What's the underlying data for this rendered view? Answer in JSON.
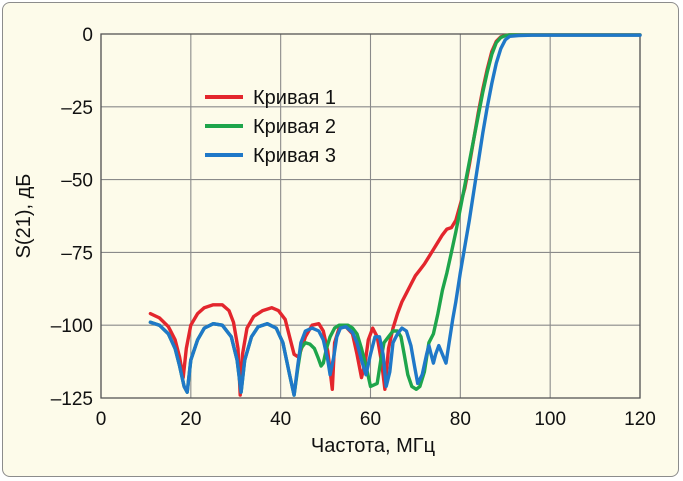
{
  "chart_data": {
    "type": "line",
    "title": "",
    "xlabel": "Частота, МГц",
    "ylabel": "S(21), дБ",
    "xlim": [
      0,
      120
    ],
    "ylim": [
      -125,
      0
    ],
    "xticks": [
      0,
      20,
      40,
      60,
      80,
      100,
      120
    ],
    "yticks": [
      0,
      -25,
      -50,
      -75,
      -100,
      -125
    ],
    "xtick_labels": [
      "0",
      "20",
      "40",
      "60",
      "80",
      "100",
      "120"
    ],
    "ytick_labels": [
      "0",
      "–25",
      "–50",
      "–75",
      "–100",
      "–125"
    ],
    "grid": true,
    "legend_position": "upper-left",
    "background_color": "#fdfbea",
    "series": [
      {
        "name": "Кривая 1",
        "color": "#e3262d",
        "x": [
          11,
          13,
          15,
          16.5,
          17.5,
          18.3,
          19,
          20,
          21.5,
          23,
          25,
          27,
          28.5,
          29.5,
          30.5,
          31,
          31.5,
          32.5,
          34,
          36,
          38,
          39.5,
          41,
          42,
          43,
          44,
          45.5,
          47,
          48.5,
          49.5,
          50.5,
          51.5,
          52,
          53,
          54.5,
          56,
          57,
          58,
          58.8,
          59.5,
          60.5,
          61.5,
          62.5,
          63.2,
          64,
          65,
          66,
          67,
          68,
          69,
          70,
          71,
          72,
          73,
          74,
          75,
          76,
          77,
          78,
          79,
          80,
          81,
          82,
          83,
          84,
          85,
          86,
          87,
          88,
          89,
          90,
          91,
          93,
          96,
          100,
          105,
          110,
          115,
          120
        ],
        "y": [
          -96,
          -97.5,
          -100.5,
          -105,
          -111,
          -118,
          -108,
          -100,
          -96,
          -94,
          -93,
          -93,
          -95,
          -99,
          -108,
          -124,
          -110,
          -101,
          -97,
          -95,
          -94,
          -95,
          -98,
          -104,
          -110,
          -111,
          -104,
          -100,
          -99.5,
          -102,
          -109,
          -122,
          -106,
          -101,
          -100.5,
          -103,
          -110,
          -118,
          -113,
          -105,
          -101,
          -104,
          -113,
          -122,
          -108,
          -101,
          -96,
          -92,
          -89,
          -86,
          -83,
          -81,
          -79,
          -76.5,
          -74,
          -71.5,
          -69,
          -67,
          -66.5,
          -64,
          -58.5,
          -53,
          -45,
          -36,
          -27,
          -19,
          -12,
          -6,
          -2.5,
          -1,
          -0.5,
          -0.3,
          -0.3,
          -0.3,
          -0.3,
          -0.3,
          -0.3,
          -0.3,
          -0.3
        ]
      },
      {
        "name": "Кривая 2",
        "color": "#1ea54b",
        "x": [
          11,
          13,
          15,
          16.5,
          17.5,
          18.5,
          19.2,
          20,
          21.5,
          23,
          25,
          27,
          29,
          30.3,
          31.2,
          32,
          33.5,
          35,
          37,
          39,
          40.5,
          42,
          43,
          43.8,
          44.5,
          45.5,
          46.5,
          47.5,
          48.3,
          49,
          49.5,
          50.2,
          51,
          52,
          53,
          54,
          55,
          56,
          57,
          58,
          59,
          60,
          61.5,
          62.3,
          63,
          64,
          65,
          66,
          66.8,
          67.5,
          68.3,
          69.2,
          70.2,
          71,
          72,
          73,
          74,
          75,
          76,
          77,
          78,
          79,
          80,
          81,
          82,
          83,
          84,
          85,
          86,
          87,
          88,
          89,
          90,
          91,
          93,
          96,
          100,
          105,
          110,
          115,
          120
        ],
        "y": [
          -99,
          -100,
          -103,
          -108,
          -114,
          -121,
          -123,
          -112,
          -105,
          -101,
          -99.5,
          -100,
          -104,
          -112,
          -123,
          -112,
          -104,
          -100.5,
          -99.5,
          -101,
          -106,
          -117,
          -124,
          -115,
          -108,
          -106,
          -106.5,
          -108,
          -111,
          -114,
          -113,
          -108,
          -104,
          -101,
          -100,
          -100,
          -100,
          -101,
          -103,
          -108,
          -114,
          -121,
          -120,
          -112,
          -106,
          -104,
          -102,
          -102,
          -104,
          -110,
          -117,
          -121,
          -122,
          -121,
          -116,
          -106,
          -103,
          -96,
          -88,
          -82,
          -75,
          -68,
          -60,
          -52,
          -44,
          -36,
          -28,
          -20,
          -13,
          -7,
          -3,
          -1.2,
          -0.6,
          -0.3,
          -0.3,
          -0.3,
          -0.3,
          -0.3,
          -0.3,
          -0.3,
          -0.3
        ]
      },
      {
        "name": "Кривая 3",
        "color": "#1f78c8",
        "x": [
          11,
          13,
          15,
          16.5,
          17.5,
          18.5,
          19.2,
          20,
          21.5,
          23,
          25,
          27,
          29,
          30.3,
          31.2,
          32,
          33.5,
          35,
          37,
          39,
          40.5,
          42,
          43,
          43.8,
          44.5,
          45.5,
          47,
          48.5,
          49.5,
          50.5,
          51,
          51.8,
          52.5,
          53.3,
          54.5,
          56,
          57,
          58,
          59,
          60,
          61,
          62,
          62.8,
          63.5,
          64.3,
          65,
          66,
          67,
          68,
          69,
          69.8,
          70.5,
          71.5,
          72.5,
          73,
          73.5,
          74,
          74.5,
          75.2,
          76,
          76.8,
          77.5,
          78.3,
          79,
          80,
          81,
          82,
          83,
          84,
          85,
          86,
          87,
          88,
          89,
          90,
          91,
          93,
          96,
          100,
          105,
          110,
          115,
          120
        ],
        "y": [
          -99,
          -100,
          -103,
          -108,
          -114,
          -121,
          -123,
          -112,
          -105,
          -101,
          -99.5,
          -100,
          -104,
          -112,
          -123,
          -112,
          -104,
          -100.5,
          -99.5,
          -101,
          -106,
          -117,
          -124,
          -114,
          -106,
          -102,
          -101,
          -102,
          -105,
          -112,
          -117,
          -111,
          -104,
          -101,
          -100.5,
          -102.5,
          -106,
          -112,
          -117,
          -110,
          -104,
          -104,
          -110,
          -121,
          -116,
          -106,
          -103,
          -101,
          -102,
          -107,
          -114,
          -120,
          -117,
          -110,
          -107,
          -110,
          -113,
          -110,
          -107,
          -110,
          -113,
          -106,
          -98,
          -92,
          -82,
          -73,
          -64,
          -54,
          -44,
          -34,
          -25,
          -17,
          -10,
          -5,
          -2,
          -0.8,
          -0.5,
          -0.4,
          -0.4,
          -0.4,
          -0.4,
          -0.4,
          -0.4
        ]
      }
    ]
  }
}
